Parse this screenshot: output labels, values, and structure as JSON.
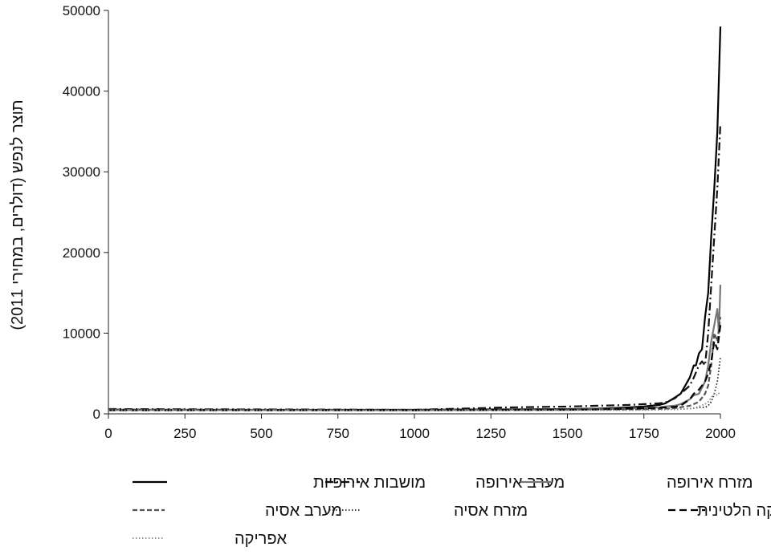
{
  "chart_data": {
    "type": "line",
    "title": "",
    "xlabel": "",
    "ylabel": "תוצר לנפש (דולרים, במחירי 2011)",
    "xlim": [
      0,
      2000
    ],
    "ylim": [
      0,
      50000
    ],
    "x_ticks": [
      "0",
      "250",
      "500",
      "750",
      "1000",
      "1250",
      "1500",
      "1750",
      "2000"
    ],
    "y_ticks": [
      "0",
      "10000",
      "20000",
      "30000",
      "40000",
      "50000"
    ],
    "grid": false,
    "legend_position": "bottom",
    "series": [
      {
        "name": "מושבות אירופיות",
        "color": "#000000",
        "dash": "solid",
        "x": [
          0,
          1000,
          1500,
          1600,
          1700,
          1750,
          1800,
          1820,
          1850,
          1870,
          1900,
          1913,
          1920,
          1930,
          1940,
          1950,
          1960,
          1970,
          1980,
          1990,
          2000
        ],
        "y": [
          500,
          500,
          600,
          650,
          800,
          900,
          1100,
          1300,
          2000,
          2500,
          4500,
          6000,
          6000,
          7500,
          8000,
          12000,
          15000,
          22000,
          28000,
          35000,
          48000
        ]
      },
      {
        "name": "מערב אירופה",
        "color": "#111111",
        "dash": "dashdot",
        "x": [
          0,
          1000,
          1300,
          1500,
          1600,
          1700,
          1750,
          1800,
          1820,
          1850,
          1870,
          1900,
          1913,
          1930,
          1940,
          1950,
          1960,
          1970,
          1980,
          1990,
          2000
        ],
        "y": [
          600,
          500,
          800,
          900,
          1000,
          1100,
          1200,
          1300,
          1400,
          1900,
          2500,
          3500,
          4500,
          6000,
          6500,
          6000,
          10000,
          16000,
          22000,
          28000,
          36000
        ]
      },
      {
        "name": "מזרח אירופה",
        "color": "#777777",
        "dash": "solid",
        "x": [
          0,
          1000,
          1500,
          1600,
          1700,
          1800,
          1820,
          1850,
          1870,
          1900,
          1913,
          1930,
          1950,
          1960,
          1970,
          1980,
          1990,
          1995,
          2000
        ],
        "y": [
          500,
          450,
          550,
          600,
          650,
          800,
          900,
          1000,
          1200,
          1800,
          2300,
          2500,
          4000,
          6000,
          9000,
          11000,
          13000,
          10000,
          16000
        ]
      },
      {
        "name": "מערב אסיה",
        "color": "#555555",
        "dash": "dashed",
        "x": [
          0,
          1000,
          1500,
          1600,
          1700,
          1800,
          1850,
          1900,
          1913,
          1930,
          1950,
          1960,
          1970,
          1980,
          1990,
          2000
        ],
        "y": [
          550,
          450,
          500,
          550,
          550,
          600,
          700,
          1000,
          1200,
          1500,
          2500,
          3500,
          6000,
          10000,
          9000,
          12000
        ]
      },
      {
        "name": "מזרח אסיה",
        "color": "#222222",
        "dash": "dotted",
        "x": [
          0,
          1000,
          1500,
          1600,
          1700,
          1800,
          1850,
          1900,
          1913,
          1930,
          1950,
          1960,
          1970,
          1980,
          1990,
          2000
        ],
        "y": [
          450,
          450,
          550,
          550,
          550,
          550,
          550,
          650,
          700,
          800,
          800,
          1000,
          1500,
          2500,
          4000,
          7000
        ]
      },
      {
        "name": "אמריקה הלטינית",
        "color": "#000000",
        "dash": "longdash",
        "x": [
          0,
          1000,
          1500,
          1600,
          1700,
          1800,
          1820,
          1850,
          1870,
          1900,
          1913,
          1930,
          1950,
          1960,
          1970,
          1980,
          1990,
          2000
        ],
        "y": [
          450,
          450,
          500,
          550,
          650,
          750,
          800,
          850,
          1000,
          1800,
          2500,
          3000,
          4000,
          5000,
          6500,
          9000,
          8000,
          11000
        ]
      },
      {
        "name": "אפריקה",
        "color": "#888888",
        "dash": "dotted",
        "x": [
          0,
          1000,
          1500,
          1600,
          1700,
          1800,
          1850,
          1900,
          1913,
          1930,
          1950,
          1960,
          1970,
          1980,
          1990,
          2000
        ],
        "y": [
          450,
          420,
          450,
          450,
          450,
          500,
          550,
          650,
          700,
          900,
          1200,
          1500,
          2000,
          2500,
          2300,
          2800
        ]
      }
    ]
  }
}
